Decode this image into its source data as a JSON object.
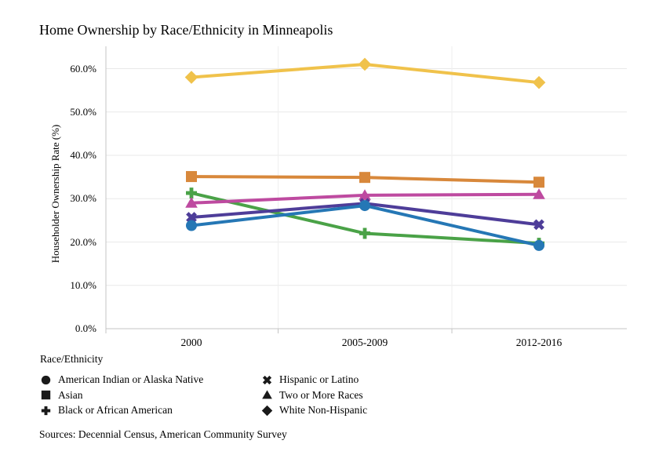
{
  "title": "Home Ownership by Race/Ethnicity in Minneapolis",
  "sources": "Sources: Decennial Census, American Community Survey",
  "chart_data": {
    "type": "line",
    "title": "Home Ownership by Race/Ethnicity in Minneapolis",
    "xlabel": "",
    "ylabel": "Householder Ownership Rate (%)",
    "categories": [
      "2000",
      "2005-2009",
      "2012-2016"
    ],
    "y_tick_labels": [
      "0.0%",
      "10.0%",
      "20.0%",
      "30.0%",
      "40.0%",
      "50.0%",
      "60.0%"
    ],
    "ylim": [
      0,
      65
    ],
    "grid": "horizontal",
    "legend": {
      "title": "Race/Ethnicity",
      "position": "bottom-left",
      "columns": 2
    },
    "series": [
      {
        "name": "American Indian or Alaska Native",
        "marker": "circle",
        "color": "#2577B5",
        "values": [
          23.8,
          28.4,
          19.2
        ]
      },
      {
        "name": "Asian",
        "marker": "square",
        "color": "#D8883B",
        "values": [
          35.1,
          34.9,
          33.8
        ]
      },
      {
        "name": "Black or African American",
        "marker": "plus",
        "color": "#4AA247",
        "values": [
          31.3,
          22.0,
          19.7
        ]
      },
      {
        "name": "Hispanic or Latino",
        "marker": "x",
        "color": "#4E3D99",
        "values": [
          25.7,
          28.9,
          24.0
        ]
      },
      {
        "name": "Two or More Races",
        "marker": "triangle",
        "color": "#BE4AA0",
        "values": [
          29.0,
          30.8,
          31.0
        ]
      },
      {
        "name": "White Non-Hispanic",
        "marker": "diamond",
        "color": "#F0C24B",
        "values": [
          58.0,
          61.0,
          56.8
        ]
      }
    ]
  },
  "colors": {
    "background": "#FFFFFF",
    "gridline": "#E9E9E9",
    "pane_divider": "#EFEFEF",
    "axis_line": "#C4C4C4",
    "text": "#000000",
    "legend_marker": "#1A1A1A"
  }
}
